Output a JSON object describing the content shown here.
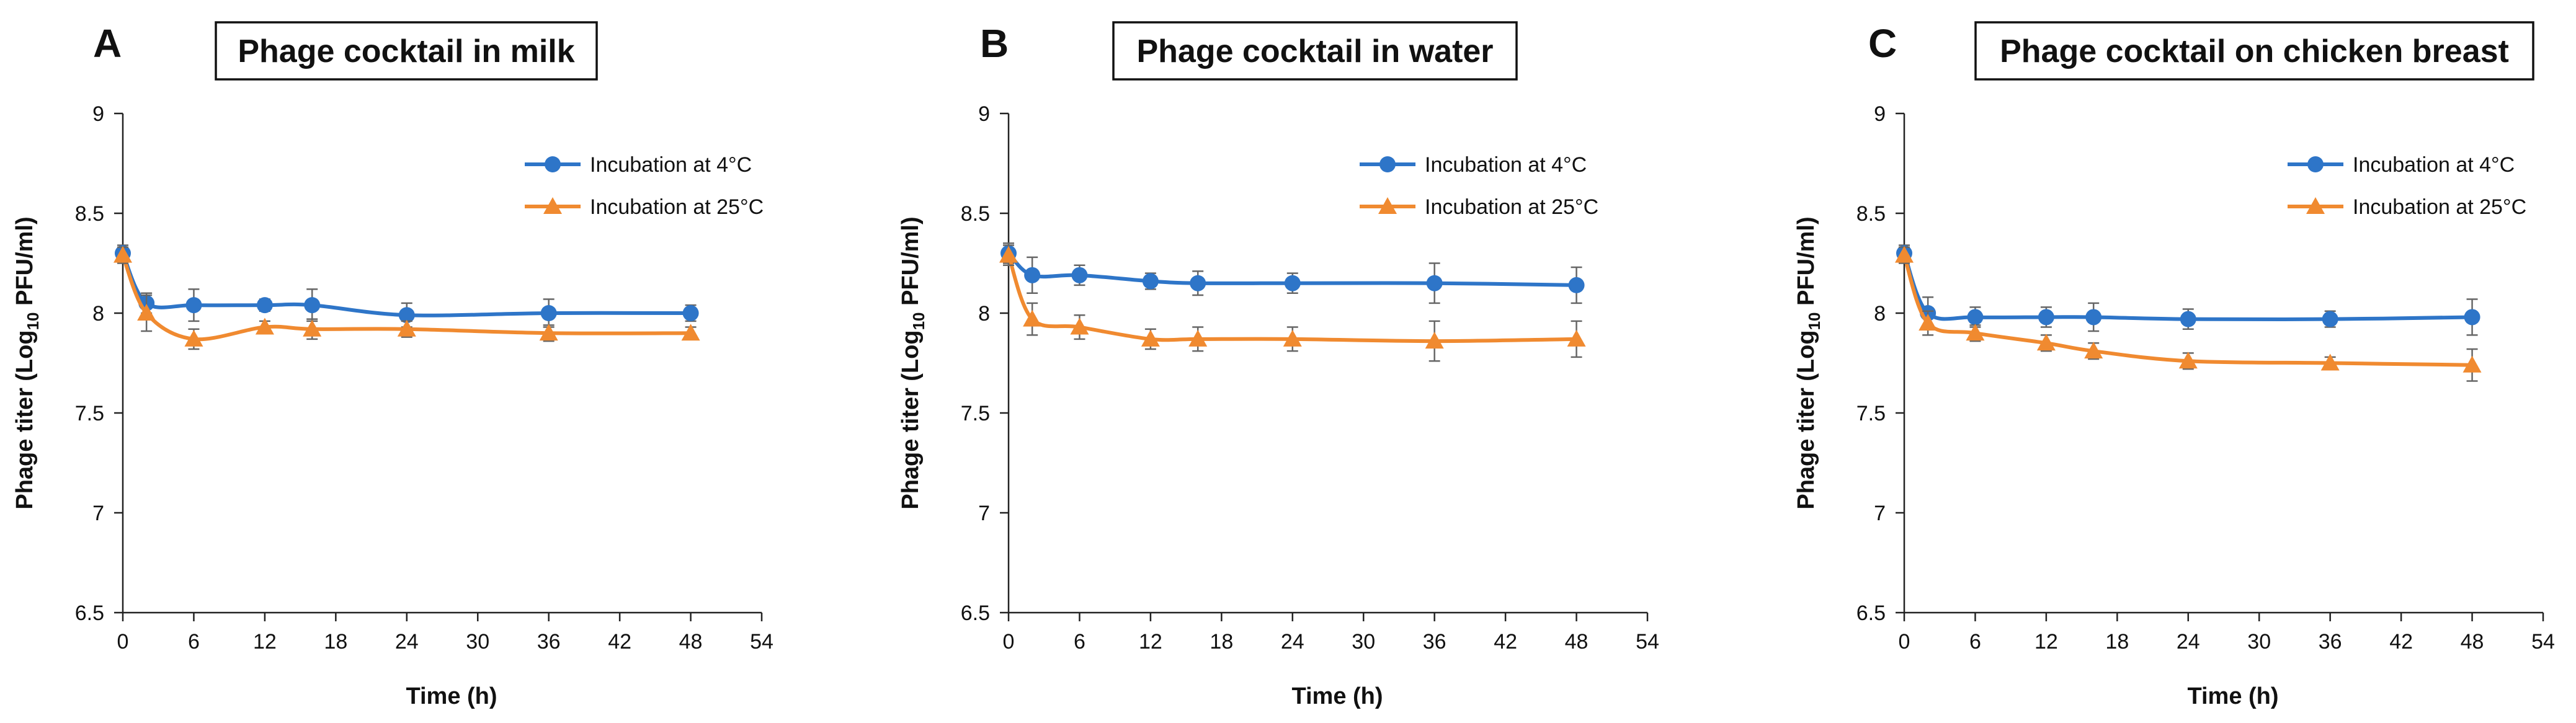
{
  "chart_data": [
    {
      "type": "line",
      "panel_label": "A",
      "title": "Phage cocktail in milk",
      "xlabel": "Time (h)",
      "ylabel": {
        "prefix": "Phage titer (Log",
        "subscript": "10",
        "suffix": " PFU/ml)"
      },
      "xlim": [
        0,
        54
      ],
      "ylim": [
        6.5,
        9
      ],
      "x_ticks": [
        "0",
        "6",
        "12",
        "18",
        "24",
        "30",
        "36",
        "42",
        "48",
        "54"
      ],
      "y_ticks": [
        "6.5",
        "7",
        "7.5",
        "8",
        "8.5",
        "9"
      ],
      "legend_position": "top-right",
      "grid": false,
      "x": [
        0,
        2,
        6,
        12,
        16,
        24,
        36,
        48
      ],
      "series": [
        {
          "name": "Incubation at 4°C",
          "color": "#2E75C8",
          "marker": "circle",
          "values": [
            8.3,
            8.05,
            8.04,
            8.04,
            8.04,
            7.99,
            8.0,
            8.0
          ],
          "errors": [
            0.04,
            0.05,
            0.08,
            0.03,
            0.08,
            0.06,
            0.07,
            0.04
          ]
        },
        {
          "name": "Incubation at 25°C",
          "color": "#F08A30",
          "marker": "triangle",
          "values": [
            8.29,
            8.0,
            7.87,
            7.93,
            7.92,
            7.92,
            7.9,
            7.9
          ],
          "errors": [
            0.04,
            0.09,
            0.05,
            0.03,
            0.05,
            0.04,
            0.04,
            0.03
          ]
        }
      ]
    },
    {
      "type": "line",
      "panel_label": "B",
      "title": "Phage cocktail in water",
      "xlabel": "Time (h)",
      "ylabel": {
        "prefix": "Phage titer (Log",
        "subscript": "10",
        "suffix": " PFU/ml)"
      },
      "xlim": [
        0,
        54
      ],
      "ylim": [
        6.5,
        9
      ],
      "x_ticks": [
        "0",
        "6",
        "12",
        "18",
        "24",
        "30",
        "36",
        "42",
        "48",
        "54"
      ],
      "y_ticks": [
        "6.5",
        "7",
        "7.5",
        "8",
        "8.5",
        "9"
      ],
      "legend_position": "top-right",
      "grid": false,
      "x": [
        0,
        2,
        6,
        12,
        16,
        24,
        36,
        48
      ],
      "series": [
        {
          "name": "Incubation at 4°C",
          "color": "#2E75C8",
          "marker": "circle",
          "values": [
            8.3,
            8.19,
            8.19,
            8.16,
            8.15,
            8.15,
            8.15,
            8.14
          ],
          "errors": [
            0.05,
            0.09,
            0.05,
            0.04,
            0.06,
            0.05,
            0.1,
            0.09
          ]
        },
        {
          "name": "Incubation at 25°C",
          "color": "#F08A30",
          "marker": "triangle",
          "values": [
            8.29,
            7.97,
            7.93,
            7.87,
            7.87,
            7.87,
            7.86,
            7.87
          ],
          "errors": [
            0.05,
            0.08,
            0.06,
            0.05,
            0.06,
            0.06,
            0.1,
            0.09
          ]
        }
      ]
    },
    {
      "type": "line",
      "panel_label": "C",
      "title": "Phage cocktail on chicken breast",
      "xlabel": "Time (h)",
      "ylabel": {
        "prefix": "Phage titer (Log",
        "subscript": "10",
        "suffix": " PFU/ml)"
      },
      "xlim": [
        0,
        54
      ],
      "ylim": [
        6.5,
        9
      ],
      "x_ticks": [
        "0",
        "6",
        "12",
        "18",
        "24",
        "30",
        "36",
        "42",
        "48",
        "54"
      ],
      "y_ticks": [
        "6.5",
        "7",
        "7.5",
        "8",
        "8.5",
        "9"
      ],
      "legend_position": "top-right",
      "grid": false,
      "x": [
        0,
        2,
        6,
        12,
        16,
        24,
        36,
        48
      ],
      "series": [
        {
          "name": "Incubation at 4°C",
          "color": "#2E75C8",
          "marker": "circle",
          "values": [
            8.3,
            8.0,
            7.98,
            7.98,
            7.98,
            7.97,
            7.97,
            7.98
          ],
          "errors": [
            0.04,
            0.08,
            0.05,
            0.05,
            0.07,
            0.05,
            0.04,
            0.09
          ]
        },
        {
          "name": "Incubation at 25°C",
          "color": "#F08A30",
          "marker": "triangle",
          "values": [
            8.29,
            7.95,
            7.9,
            7.85,
            7.81,
            7.76,
            7.75,
            7.74
          ],
          "errors": [
            0.04,
            0.06,
            0.04,
            0.04,
            0.04,
            0.04,
            0.03,
            0.08
          ]
        }
      ]
    }
  ]
}
